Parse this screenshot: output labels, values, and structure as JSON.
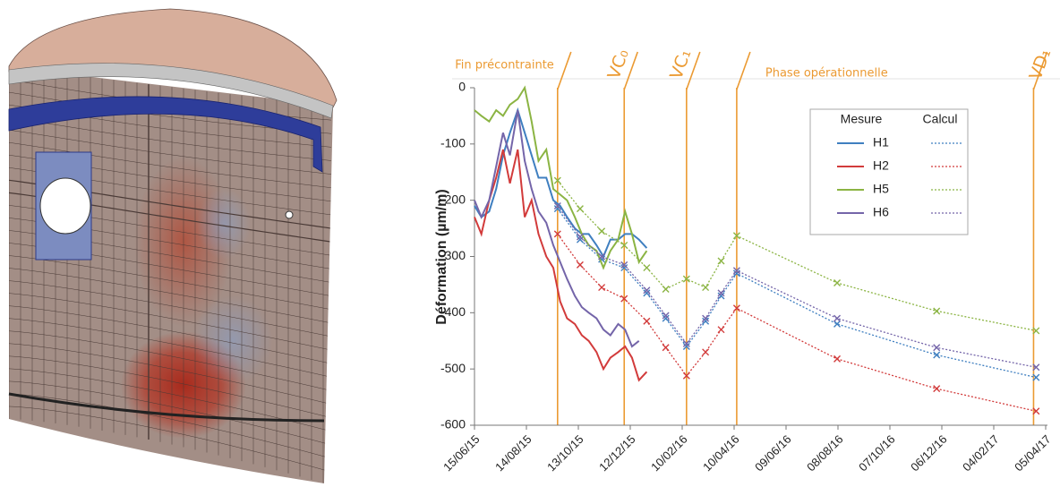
{
  "chart_data": {
    "type": "line",
    "y_label": "Déformation (µm/m)",
    "x": [
      "15/06/15",
      "23/06/15",
      "02/07/15",
      "10/07/15",
      "18/07/15",
      "26/07/15",
      "04/08/15",
      "12/08/15",
      "20/08/15",
      "28/08/15",
      "06/09/15",
      "14/09/15",
      "22/09/15",
      "30/09/15",
      "09/10/15",
      "17/10/15",
      "25/10/15",
      "03/11/15",
      "11/11/15",
      "19/11/15",
      "28/11/15",
      "06/12/15",
      "14/12/15",
      "22/12/15",
      "31/12/15"
    ],
    "calc_x": [
      "19/09/15",
      "15/10/15",
      "09/11/15",
      "05/12/15",
      "31/12/15",
      "22/01/16",
      "15/02/16",
      "08/03/16",
      "26/03/16",
      "13/04/16",
      "07/08/16",
      "30/11/16",
      "25/03/17"
    ],
    "xlim": [
      "15/06/15",
      "05/04/17"
    ],
    "xticks": [
      "15/06/15",
      "14/08/15",
      "13/10/15",
      "12/12/15",
      "10/02/16",
      "10/04/16",
      "09/06/16",
      "08/08/16",
      "07/10/16",
      "06/12/16",
      "04/02/17",
      "05/04/17"
    ],
    "ylim": [
      -600,
      0
    ],
    "yticks": [
      0,
      -100,
      -200,
      -300,
      -400,
      -500,
      -600
    ],
    "legend_headers": [
      "Mesure",
      "Calcul"
    ],
    "series": [
      {
        "name": "H1",
        "color": "#3f7fc0",
        "values": [
          -210,
          -230,
          -220,
          -180,
          -120,
          -80,
          -40,
          -80,
          -120,
          -160,
          -160,
          -200,
          -210,
          -230,
          -250,
          -260,
          -260,
          -280,
          -300,
          -270,
          -270,
          -260,
          -260,
          -270,
          -285
        ],
        "calc_values": [
          -215,
          -270,
          -305,
          -320,
          -365,
          -410,
          -460,
          -415,
          -370,
          -330,
          -420,
          -475,
          -515
        ]
      },
      {
        "name": "H2",
        "color": "#d23b3b",
        "values": [
          -230,
          -260,
          -200,
          -160,
          -110,
          -170,
          -110,
          -230,
          -200,
          -260,
          -300,
          -320,
          -380,
          -410,
          -420,
          -440,
          -450,
          -470,
          -500,
          -480,
          -470,
          -460,
          -480,
          -520,
          -505
        ],
        "calc_values": [
          -260,
          -315,
          -355,
          -375,
          -415,
          -462,
          -512,
          -470,
          -430,
          -392,
          -482,
          -535,
          -575
        ]
      },
      {
        "name": "H5",
        "color": "#8bb443",
        "values": [
          -40,
          -50,
          -60,
          -40,
          -50,
          -30,
          -20,
          0,
          -60,
          -130,
          -110,
          -180,
          -190,
          -200,
          -230,
          -260,
          -280,
          -290,
          -320,
          -290,
          -270,
          -220,
          -260,
          -310,
          -290
        ],
        "calc_values": [
          -165,
          -215,
          -255,
          -280,
          -320,
          -358,
          -340,
          -355,
          -308,
          -263,
          -347,
          -397,
          -432
        ]
      },
      {
        "name": "H6",
        "color": "#7465a9",
        "values": [
          -200,
          -230,
          -200,
          -140,
          -80,
          -120,
          -40,
          -130,
          -180,
          -220,
          -240,
          -280,
          -310,
          -340,
          -370,
          -390,
          -400,
          -410,
          -430,
          -440,
          -420,
          -430,
          -460,
          -450,
          null
        ],
        "calc_values": [
          -210,
          -265,
          -300,
          -315,
          -360,
          -405,
          -455,
          -410,
          -365,
          -325,
          -410,
          -462,
          -497
        ]
      }
    ],
    "events": [
      {
        "x": "19/09/15",
        "label": "Fin précontrainte"
      },
      {
        "x": "05/12/15",
        "label": "VC₀"
      },
      {
        "x": "15/02/16",
        "label": "VC₁"
      },
      {
        "x": "13/04/16",
        "label": "Phase opérationnelle"
      },
      {
        "x": "22/03/17",
        "label": "VD₁"
      }
    ],
    "event_color": "#eb9a32"
  }
}
